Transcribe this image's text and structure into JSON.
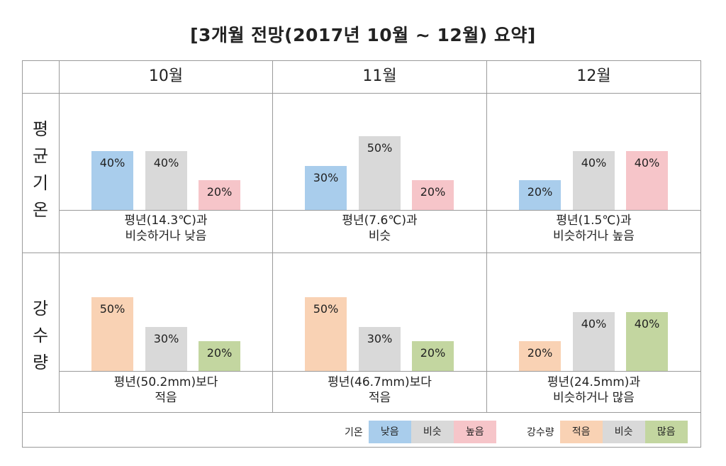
{
  "title": "[3개월  전망(2017년  10월 ~ 12월)  요약]",
  "row_labels": {
    "temperature": [
      "평",
      "균",
      "기",
      "온"
    ],
    "precipitation": [
      "강",
      "수",
      "량"
    ]
  },
  "months": [
    "10월",
    "11월",
    "12월"
  ],
  "colors": {
    "temp_low": "#a9cdec",
    "similar": "#d9d9d9",
    "temp_high": "#f6c5c9",
    "precip_low": "#f9d2b4",
    "precip_high": "#c3d6a0"
  },
  "chart_data": [
    {
      "type": "bar",
      "title": "",
      "category": "평균기온",
      "categories": [
        "10월",
        "11월",
        "12월"
      ],
      "series": [
        {
          "name": "낮음",
          "values": [
            40,
            30,
            20
          ]
        },
        {
          "name": "비슷",
          "values": [
            40,
            50,
            40
          ]
        },
        {
          "name": "높음",
          "values": [
            20,
            20,
            40
          ]
        }
      ],
      "ylim": [
        0,
        60
      ]
    },
    {
      "type": "bar",
      "title": "",
      "category": "강수량",
      "categories": [
        "10월",
        "11월",
        "12월"
      ],
      "series": [
        {
          "name": "적음",
          "values": [
            50,
            50,
            20
          ]
        },
        {
          "name": "비슷",
          "values": [
            30,
            30,
            40
          ]
        },
        {
          "name": "많음",
          "values": [
            20,
            20,
            40
          ]
        }
      ],
      "ylim": [
        0,
        60
      ]
    }
  ],
  "descriptions": {
    "temperature": [
      [
        "평년(14.3℃)과",
        "비슷하거나 낮음"
      ],
      [
        "평년(7.6℃)과",
        "비슷"
      ],
      [
        "평년(1.5℃)과",
        "비슷하거나 높음"
      ]
    ],
    "precipitation": [
      [
        "평년(50.2mm)보다",
        "적음"
      ],
      [
        "평년(46.7mm)보다",
        "적음"
      ],
      [
        "평년(24.5mm)과",
        "비슷하거나 많음"
      ]
    ]
  },
  "legend": {
    "temperature": {
      "label": "기온",
      "items": [
        "낮음",
        "비슷",
        "높음"
      ]
    },
    "precipitation": {
      "label": "강수량",
      "items": [
        "적음",
        "비슷",
        "많음"
      ]
    }
  }
}
